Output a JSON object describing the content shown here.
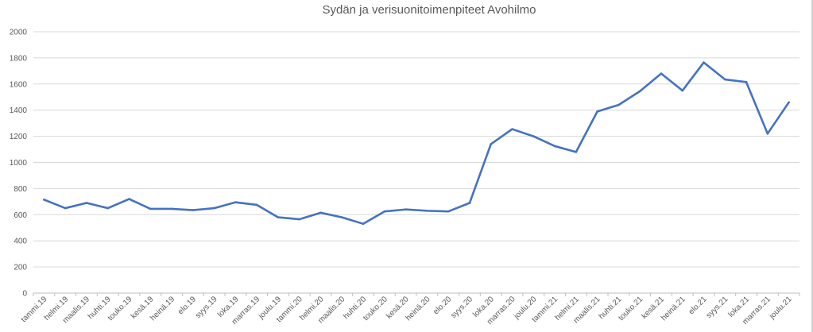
{
  "chart_data": {
    "type": "line",
    "title": "Sydän ja verisuonitoimenpiteet Avohilmo",
    "xlabel": "",
    "ylabel": "",
    "ylim": [
      0,
      2000
    ],
    "yticks": [
      0,
      200,
      400,
      600,
      800,
      1000,
      1200,
      1400,
      1600,
      1800,
      2000
    ],
    "grid": true,
    "legend": "none",
    "categories": [
      "tammi.19",
      "helmi.19",
      "maalis.19",
      "huhti.19",
      "touko.19",
      "kesä.19",
      "heinä.19",
      "elo.19",
      "syys.19",
      "loka.19",
      "marras.19",
      "joulu.19",
      "tammi.20",
      "helmi.20",
      "maalis.20",
      "huhti.20",
      "touko.20",
      "kesä.20",
      "heinä.20",
      "elo.20",
      "syys.20",
      "loka.20",
      "marras.20",
      "joulu.20",
      "tammi.21",
      "helmi.21",
      "maalis.21",
      "huhti.21",
      "touko.21",
      "kesä.21",
      "heinä.21",
      "elo.21",
      "syys.21",
      "loka.21",
      "marras.21",
      "joulu.21"
    ],
    "series": [
      {
        "color": "#4472c4",
        "values": [
          715,
          650,
          690,
          650,
          720,
          645,
          645,
          635,
          650,
          695,
          675,
          580,
          565,
          615,
          580,
          530,
          625,
          640,
          630,
          625,
          690,
          1140,
          1255,
          1200,
          1125,
          1080,
          1390,
          1440,
          1545,
          1680,
          1550,
          1765,
          1635,
          1615,
          1220,
          1460
        ]
      }
    ]
  }
}
